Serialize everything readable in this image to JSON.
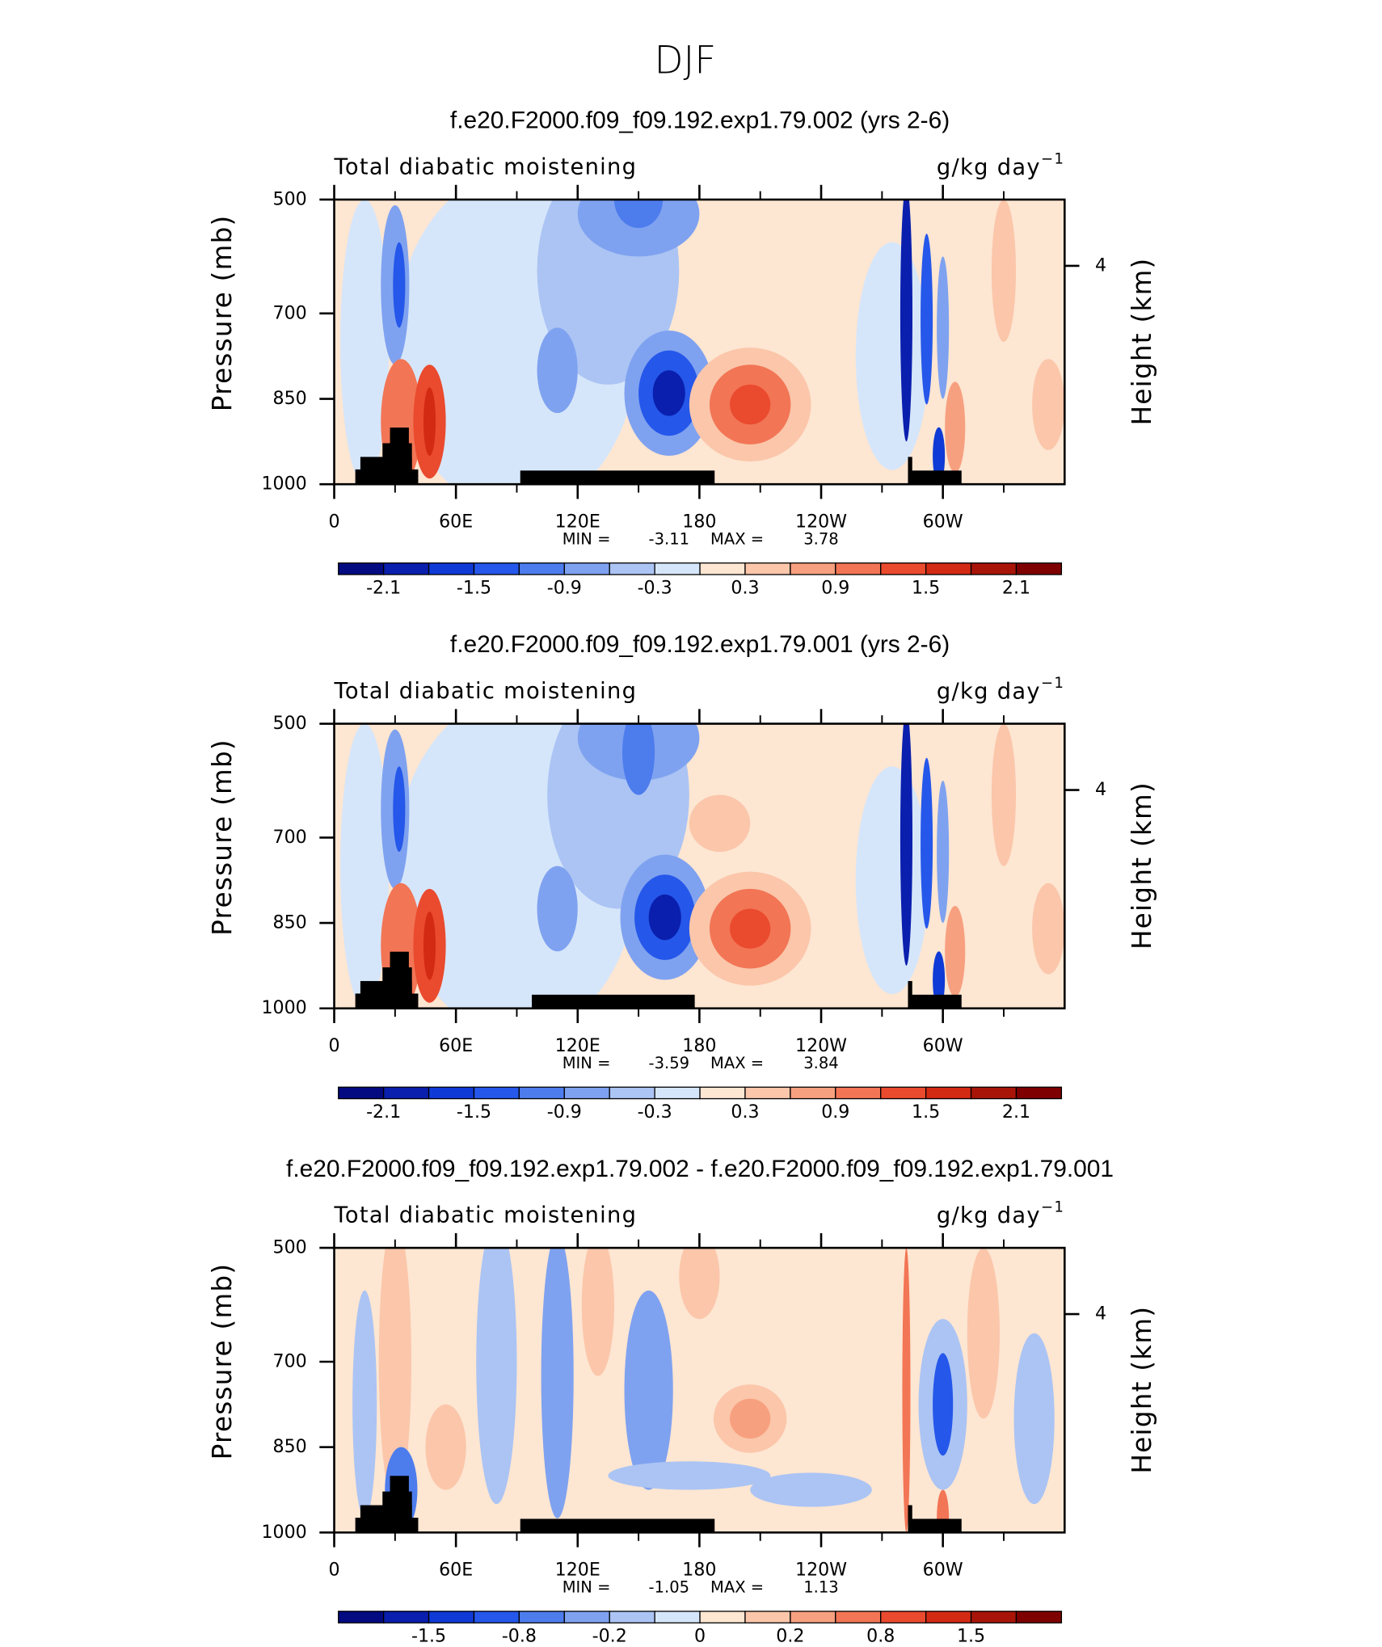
{
  "page_title": "DJF",
  "chart_data": [
    {
      "type": "contour",
      "title": "f.e20.F2000.f09_f09.192.exp1.79.002 (yrs 2-6)",
      "left_string": "Total diabatic moistening",
      "units": "g/kg day",
      "units_exponent": "−1",
      "ylabel": "Pressure (mb)",
      "y2label": "Height (km)",
      "xlim": [
        0,
        360
      ],
      "xticks": [
        0,
        {
          "value": 60,
          "label": "60E"
        },
        {
          "value": 120,
          "label": "120E"
        },
        180,
        {
          "value": 240,
          "label": "120W"
        },
        {
          "value": 300,
          "label": "60W"
        }
      ],
      "ylim": [
        500,
        1000
      ],
      "yticks": [
        500,
        700,
        850,
        1000
      ],
      "y2ticks": [
        4
      ],
      "min_label": "MIN =",
      "min": -3.11,
      "max_label": "MAX =",
      "max": 3.78,
      "colorbar": {
        "colors": [
          "#040a80",
          "#0a1fad",
          "#0f3ad6",
          "#2557ea",
          "#4d7ced",
          "#7fa2f0",
          "#abc4f4",
          "#d6e6fa",
          "#fde6d2",
          "#fbc6aa",
          "#f7a07f",
          "#f27555",
          "#ea4a2e",
          "#d32a14",
          "#a81508",
          "#7e0000"
        ],
        "labels": [
          -2.1,
          -1.5,
          -0.9,
          -0.3,
          0.3,
          0.9,
          1.5,
          2.1
        ]
      }
    },
    {
      "type": "contour",
      "title": "f.e20.F2000.f09_f09.192.exp1.79.001 (yrs 2-6)",
      "left_string": "Total diabatic moistening",
      "units": "g/kg day",
      "units_exponent": "−1",
      "ylabel": "Pressure (mb)",
      "y2label": "Height (km)",
      "xlim": [
        0,
        360
      ],
      "xticks": [
        0,
        {
          "value": 60,
          "label": "60E"
        },
        {
          "value": 120,
          "label": "120E"
        },
        180,
        {
          "value": 240,
          "label": "120W"
        },
        {
          "value": 300,
          "label": "60W"
        }
      ],
      "ylim": [
        500,
        1000
      ],
      "yticks": [
        500,
        700,
        850,
        1000
      ],
      "y2ticks": [
        4
      ],
      "min_label": "MIN =",
      "min": -3.59,
      "max_label": "MAX =",
      "max": 3.84,
      "colorbar": {
        "colors": [
          "#040a80",
          "#0a1fad",
          "#0f3ad6",
          "#2557ea",
          "#4d7ced",
          "#7fa2f0",
          "#abc4f4",
          "#d6e6fa",
          "#fde6d2",
          "#fbc6aa",
          "#f7a07f",
          "#f27555",
          "#ea4a2e",
          "#d32a14",
          "#a81508",
          "#7e0000"
        ],
        "labels": [
          -2.1,
          -1.5,
          -0.9,
          -0.3,
          0.3,
          0.9,
          1.5,
          2.1
        ]
      }
    },
    {
      "type": "contour",
      "title": "f.e20.F2000.f09_f09.192.exp1.79.002 - f.e20.F2000.f09_f09.192.exp1.79.001",
      "left_string": "Total diabatic moistening",
      "units": "g/kg day",
      "units_exponent": "−1",
      "ylabel": "Pressure (mb)",
      "y2label": "Height (km)",
      "xlim": [
        0,
        360
      ],
      "xticks": [
        0,
        {
          "value": 60,
          "label": "60E"
        },
        {
          "value": 120,
          "label": "120E"
        },
        180,
        {
          "value": 240,
          "label": "120W"
        },
        {
          "value": 300,
          "label": "60W"
        }
      ],
      "ylim": [
        500,
        1000
      ],
      "yticks": [
        500,
        700,
        850,
        1000
      ],
      "y2ticks": [
        4
      ],
      "min_label": "MIN =",
      "min": -1.05,
      "max_label": "MAX =",
      "max": 1.13,
      "colorbar": {
        "colors": [
          "#040a80",
          "#0a1fad",
          "#0f3ad6",
          "#2557ea",
          "#4d7ced",
          "#7fa2f0",
          "#abc4f4",
          "#d6e6fa",
          "#fde6d2",
          "#fbc6aa",
          "#f7a07f",
          "#f27555",
          "#ea4a2e",
          "#d32a14",
          "#a81508",
          "#7e0000"
        ],
        "labels": [
          -1.5,
          -0.8,
          -0.2,
          0,
          0.2,
          0.8,
          1.5
        ]
      }
    }
  ]
}
